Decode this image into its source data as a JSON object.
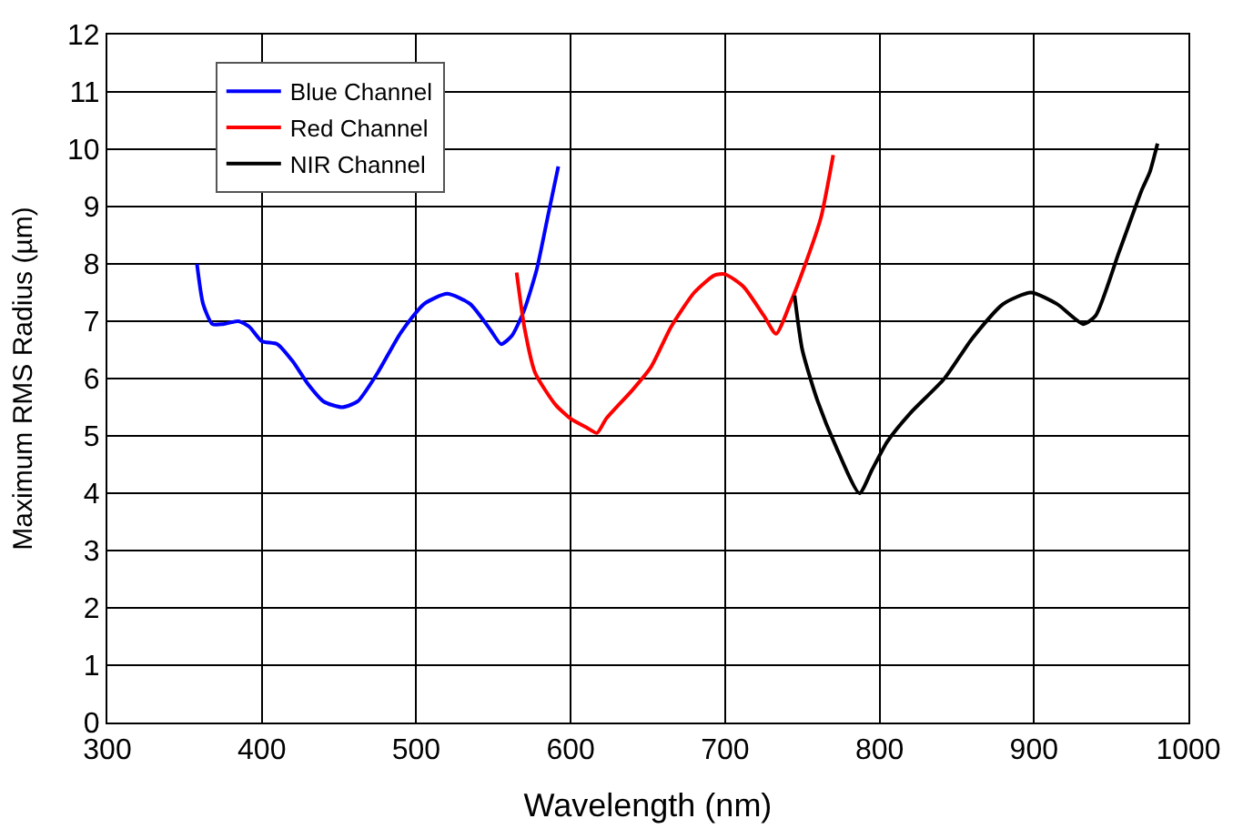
{
  "chart_data": {
    "type": "line",
    "xlabel": "Wavelength (nm)",
    "ylabel": "Maximum RMS Radius (µm)",
    "xlim": [
      300,
      1000
    ],
    "xticks": [
      300,
      400,
      500,
      600,
      700,
      800,
      900,
      1000
    ],
    "ylim": [
      0,
      12
    ],
    "yticks": [
      0,
      1,
      2,
      3,
      4,
      5,
      6,
      7,
      8,
      9,
      10,
      11,
      12
    ],
    "grid": true,
    "legend": "top left",
    "marker": "none",
    "line_style": "solid",
    "series": [
      {
        "name": "Blue Channel",
        "color": "#0000ff",
        "x": [
          358,
          362,
          368,
          375,
          385,
          392,
          400,
          410,
          420,
          430,
          440,
          452,
          462,
          475,
          490,
          505,
          520,
          535,
          548,
          555,
          562,
          570,
          578,
          585,
          592
        ],
        "values": [
          8.0,
          7.3,
          6.95,
          6.95,
          7.0,
          6.9,
          6.65,
          6.6,
          6.3,
          5.9,
          5.6,
          5.5,
          5.6,
          6.1,
          6.8,
          7.3,
          7.48,
          7.3,
          6.85,
          6.6,
          6.75,
          7.2,
          7.9,
          8.8,
          9.7
        ]
      },
      {
        "name": "Red Channel",
        "color": "#ff0000",
        "x": [
          565,
          570,
          577,
          590,
          600,
          610,
          617,
          623,
          640,
          652,
          665,
          680,
          693,
          700,
          712,
          725,
          733,
          742,
          752,
          762,
          770
        ],
        "values": [
          7.85,
          6.9,
          6.1,
          5.55,
          5.3,
          5.15,
          5.05,
          5.3,
          5.8,
          6.2,
          6.9,
          7.5,
          7.8,
          7.82,
          7.6,
          7.1,
          6.78,
          7.3,
          8.0,
          8.8,
          9.9
        ]
      },
      {
        "name": "NIR Channel",
        "color": "#000000",
        "x": [
          745,
          750,
          760,
          772,
          787,
          795,
          805,
          820,
          842,
          860,
          880,
          898,
          915,
          932,
          940,
          955,
          970,
          975,
          980
        ],
        "values": [
          7.45,
          6.5,
          5.6,
          4.8,
          4.0,
          4.4,
          4.9,
          5.4,
          6.0,
          6.7,
          7.3,
          7.5,
          7.3,
          6.95,
          7.1,
          8.2,
          9.3,
          9.6,
          10.1
        ]
      }
    ]
  }
}
